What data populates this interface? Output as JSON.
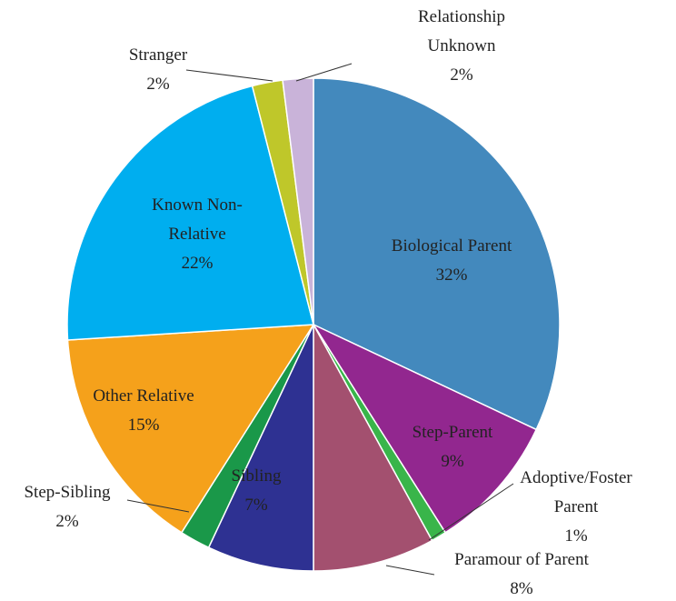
{
  "chart_data": {
    "type": "pie",
    "categories": [
      "Biological Parent",
      "Step-Parent",
      "Adoptive/Foster\nParent",
      "Paramour of Parent",
      "Sibling",
      "Step-Sibling",
      "Other Relative",
      "Known Non-\nRelative",
      "Stranger",
      "Relationship\nUnknown"
    ],
    "values": [
      32,
      9,
      1,
      8,
      7,
      2,
      15,
      22,
      2,
      2
    ],
    "value_labels": [
      "32%",
      "9%",
      "1%",
      "8%",
      "7%",
      "2%",
      "15%",
      "22%",
      "2%",
      "2%"
    ],
    "colors": [
      "#4389bd",
      "#92278f",
      "#39b54a",
      "#a3506f",
      "#2e3192",
      "#1a9849",
      "#f5a11b",
      "#00aeef",
      "#bfc72a",
      "#c9b3d9"
    ]
  }
}
